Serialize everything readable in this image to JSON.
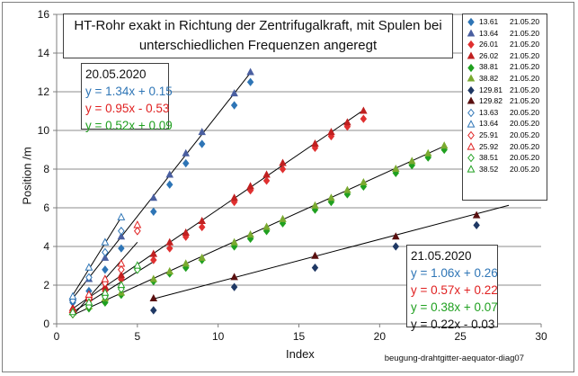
{
  "title": "HT-Rohr exakt in Richtung der Zentrifugalkraft, mit Spulen bei unterschiedlichen Frequenzen angeregt",
  "box_2005": {
    "header": "20.05.2020",
    "lines": [
      {
        "text": "y = 1.34x + 0.15",
        "color": "#2e75b6"
      },
      {
        "text": "y = 0.95x - 0.53",
        "color": "#e02020"
      },
      {
        "text": "y = 0.52x + 0.09",
        "color": "#20a020"
      }
    ]
  },
  "box_2105": {
    "header": "21.05.2020",
    "lines": [
      {
        "text": "y = 1.06x + 0.26",
        "color": "#2e75b6"
      },
      {
        "text": "y = 0.57x + 0.22",
        "color": "#e02020"
      },
      {
        "text": "y = 0.38x + 0.07",
        "color": "#20a020"
      },
      {
        "text": "y = 0.22x - 0.03",
        "color": "#111111"
      }
    ]
  },
  "footnote": "beugung-drahtgitter-aequator-diag07",
  "chart_data": {
    "type": "scatter",
    "xlabel": "Index",
    "ylabel": "Position /m",
    "xlim": [
      0,
      30
    ],
    "ylim": [
      0,
      16
    ],
    "xticks": [
      0,
      5,
      10,
      15,
      20,
      25,
      30
    ],
    "yticks": [
      0,
      2,
      4,
      6,
      8,
      10,
      12,
      14,
      16
    ],
    "grid": "horizontal",
    "legend_position": "right",
    "trendlines": [
      {
        "slope": 1.06,
        "intercept": 0.26,
        "x": [
          1,
          12
        ]
      },
      {
        "slope": 0.57,
        "intercept": 0.22,
        "x": [
          1,
          19
        ]
      },
      {
        "slope": 0.38,
        "intercept": 0.07,
        "x": [
          1,
          24
        ]
      },
      {
        "slope": 0.22,
        "intercept": -0.03,
        "x": [
          6,
          28
        ]
      },
      {
        "slope": 1.34,
        "intercept": 0.15,
        "x": [
          1,
          4
        ]
      },
      {
        "slope": 0.95,
        "intercept": -0.53,
        "x": [
          1,
          5
        ]
      },
      {
        "slope": 0.52,
        "intercept": 0.09,
        "x": [
          1,
          6
        ]
      }
    ],
    "series": [
      {
        "name": "13.61",
        "date": "21.05.20",
        "marker": "diamond",
        "filled": true,
        "color": "#2e75b6",
        "x": [
          1,
          2,
          3,
          4,
          6,
          7,
          8,
          9,
          11,
          12
        ],
        "y": [
          1.1,
          1.7,
          2.8,
          3.9,
          5.8,
          7.2,
          8.3,
          9.3,
          11.3,
          12.5
        ]
      },
      {
        "name": "13.64",
        "date": "21.05.20",
        "marker": "triangle",
        "filled": true,
        "color": "#4a5fa0",
        "x": [
          1,
          2,
          3,
          4,
          6,
          7,
          8,
          9,
          11,
          12
        ],
        "y": [
          1.3,
          2.3,
          3.4,
          4.5,
          6.5,
          7.7,
          8.8,
          9.9,
          11.9,
          13.0
        ]
      },
      {
        "name": "26.01",
        "date": "21.05.20",
        "marker": "diamond",
        "filled": true,
        "color": "#e03030",
        "x": [
          1,
          2,
          3,
          4,
          6,
          7,
          8,
          9,
          11,
          12,
          13,
          14,
          16,
          17,
          18,
          19
        ],
        "y": [
          0.6,
          1.2,
          1.7,
          2.3,
          3.3,
          3.9,
          4.5,
          5.0,
          6.3,
          6.9,
          7.4,
          8.0,
          9.1,
          9.7,
          10.2,
          10.6
        ]
      },
      {
        "name": "26.02",
        "date": "21.05.20",
        "marker": "triangle",
        "filled": true,
        "color": "#c02020",
        "x": [
          1,
          2,
          3,
          4,
          6,
          7,
          8,
          9,
          11,
          12,
          13,
          14,
          16,
          17,
          18,
          19
        ],
        "y": [
          0.8,
          1.4,
          1.9,
          2.5,
          3.6,
          4.2,
          4.7,
          5.3,
          6.5,
          7.1,
          7.7,
          8.3,
          9.3,
          9.9,
          10.4,
          11.0
        ]
      },
      {
        "name": "38.81",
        "date": "21.05.20",
        "marker": "diamond",
        "filled": true,
        "color": "#20a020",
        "x": [
          1,
          2,
          3,
          4,
          6,
          7,
          8,
          9,
          11,
          12,
          13,
          14,
          16,
          17,
          18,
          19,
          21,
          22,
          23,
          24
        ],
        "y": [
          0.5,
          0.8,
          1.1,
          1.5,
          2.2,
          2.6,
          2.9,
          3.3,
          4.0,
          4.4,
          4.8,
          5.2,
          5.9,
          6.3,
          6.7,
          7.1,
          7.8,
          8.2,
          8.6,
          9.0
        ]
      },
      {
        "name": "38.82",
        "date": "21.05.20",
        "marker": "triangle",
        "filled": true,
        "color": "#7aaa30",
        "x": [
          1,
          2,
          3,
          4,
          6,
          7,
          8,
          9,
          11,
          12,
          13,
          14,
          16,
          17,
          18,
          19,
          21,
          22,
          23,
          24
        ],
        "y": [
          0.6,
          0.9,
          1.3,
          1.6,
          2.3,
          2.7,
          3.1,
          3.4,
          4.2,
          4.6,
          5.0,
          5.4,
          6.1,
          6.5,
          6.9,
          7.3,
          8.0,
          8.4,
          8.8,
          9.2
        ]
      },
      {
        "name": "129.81",
        "date": "21.05.20",
        "marker": "diamond",
        "filled": true,
        "color": "#1f3864",
        "x": [
          6,
          11,
          16,
          21,
          26
        ],
        "y": [
          0.7,
          1.9,
          2.9,
          4.0,
          5.1
        ]
      },
      {
        "name": "129.82",
        "date": "21.05.20",
        "marker": "triangle",
        "filled": true,
        "color": "#5a1010",
        "x": [
          6,
          11,
          16,
          21,
          26
        ],
        "y": [
          1.3,
          2.4,
          3.5,
          4.5,
          5.6
        ]
      },
      {
        "name": "13.63",
        "date": "20.05.20",
        "marker": "diamond",
        "filled": false,
        "color": "#2e75b6",
        "x": [
          1,
          2,
          3,
          4
        ],
        "y": [
          1.2,
          2.4,
          3.7,
          4.8
        ]
      },
      {
        "name": "13.64",
        "date": "20.05.20",
        "marker": "triangle",
        "filled": false,
        "color": "#2e75b6",
        "x": [
          1,
          2,
          3,
          4
        ],
        "y": [
          1.4,
          2.9,
          4.2,
          5.5
        ]
      },
      {
        "name": "25.91",
        "date": "20.05.20",
        "marker": "diamond",
        "filled": false,
        "color": "#e02020",
        "x": [
          1,
          2,
          3,
          4,
          5
        ],
        "y": [
          0.5,
          1.3,
          2.1,
          2.8,
          4.8
        ]
      },
      {
        "name": "25.92",
        "date": "20.05.20",
        "marker": "triangle",
        "filled": false,
        "color": "#e02020",
        "x": [
          1,
          2,
          3,
          4,
          5
        ],
        "y": [
          0.7,
          1.5,
          2.3,
          3.1,
          5.1
        ]
      },
      {
        "name": "38.51",
        "date": "20.05.20",
        "marker": "diamond",
        "filled": false,
        "color": "#20a020",
        "x": [
          1,
          2,
          3,
          4,
          5
        ],
        "y": [
          0.5,
          0.9,
          1.4,
          1.8,
          2.8
        ]
      },
      {
        "name": "38.52",
        "date": "20.05.20",
        "marker": "triangle",
        "filled": false,
        "color": "#20a020",
        "x": [
          1,
          2,
          3,
          4,
          5
        ],
        "y": [
          0.6,
          1.1,
          1.6,
          2.0,
          3.0
        ]
      }
    ]
  }
}
